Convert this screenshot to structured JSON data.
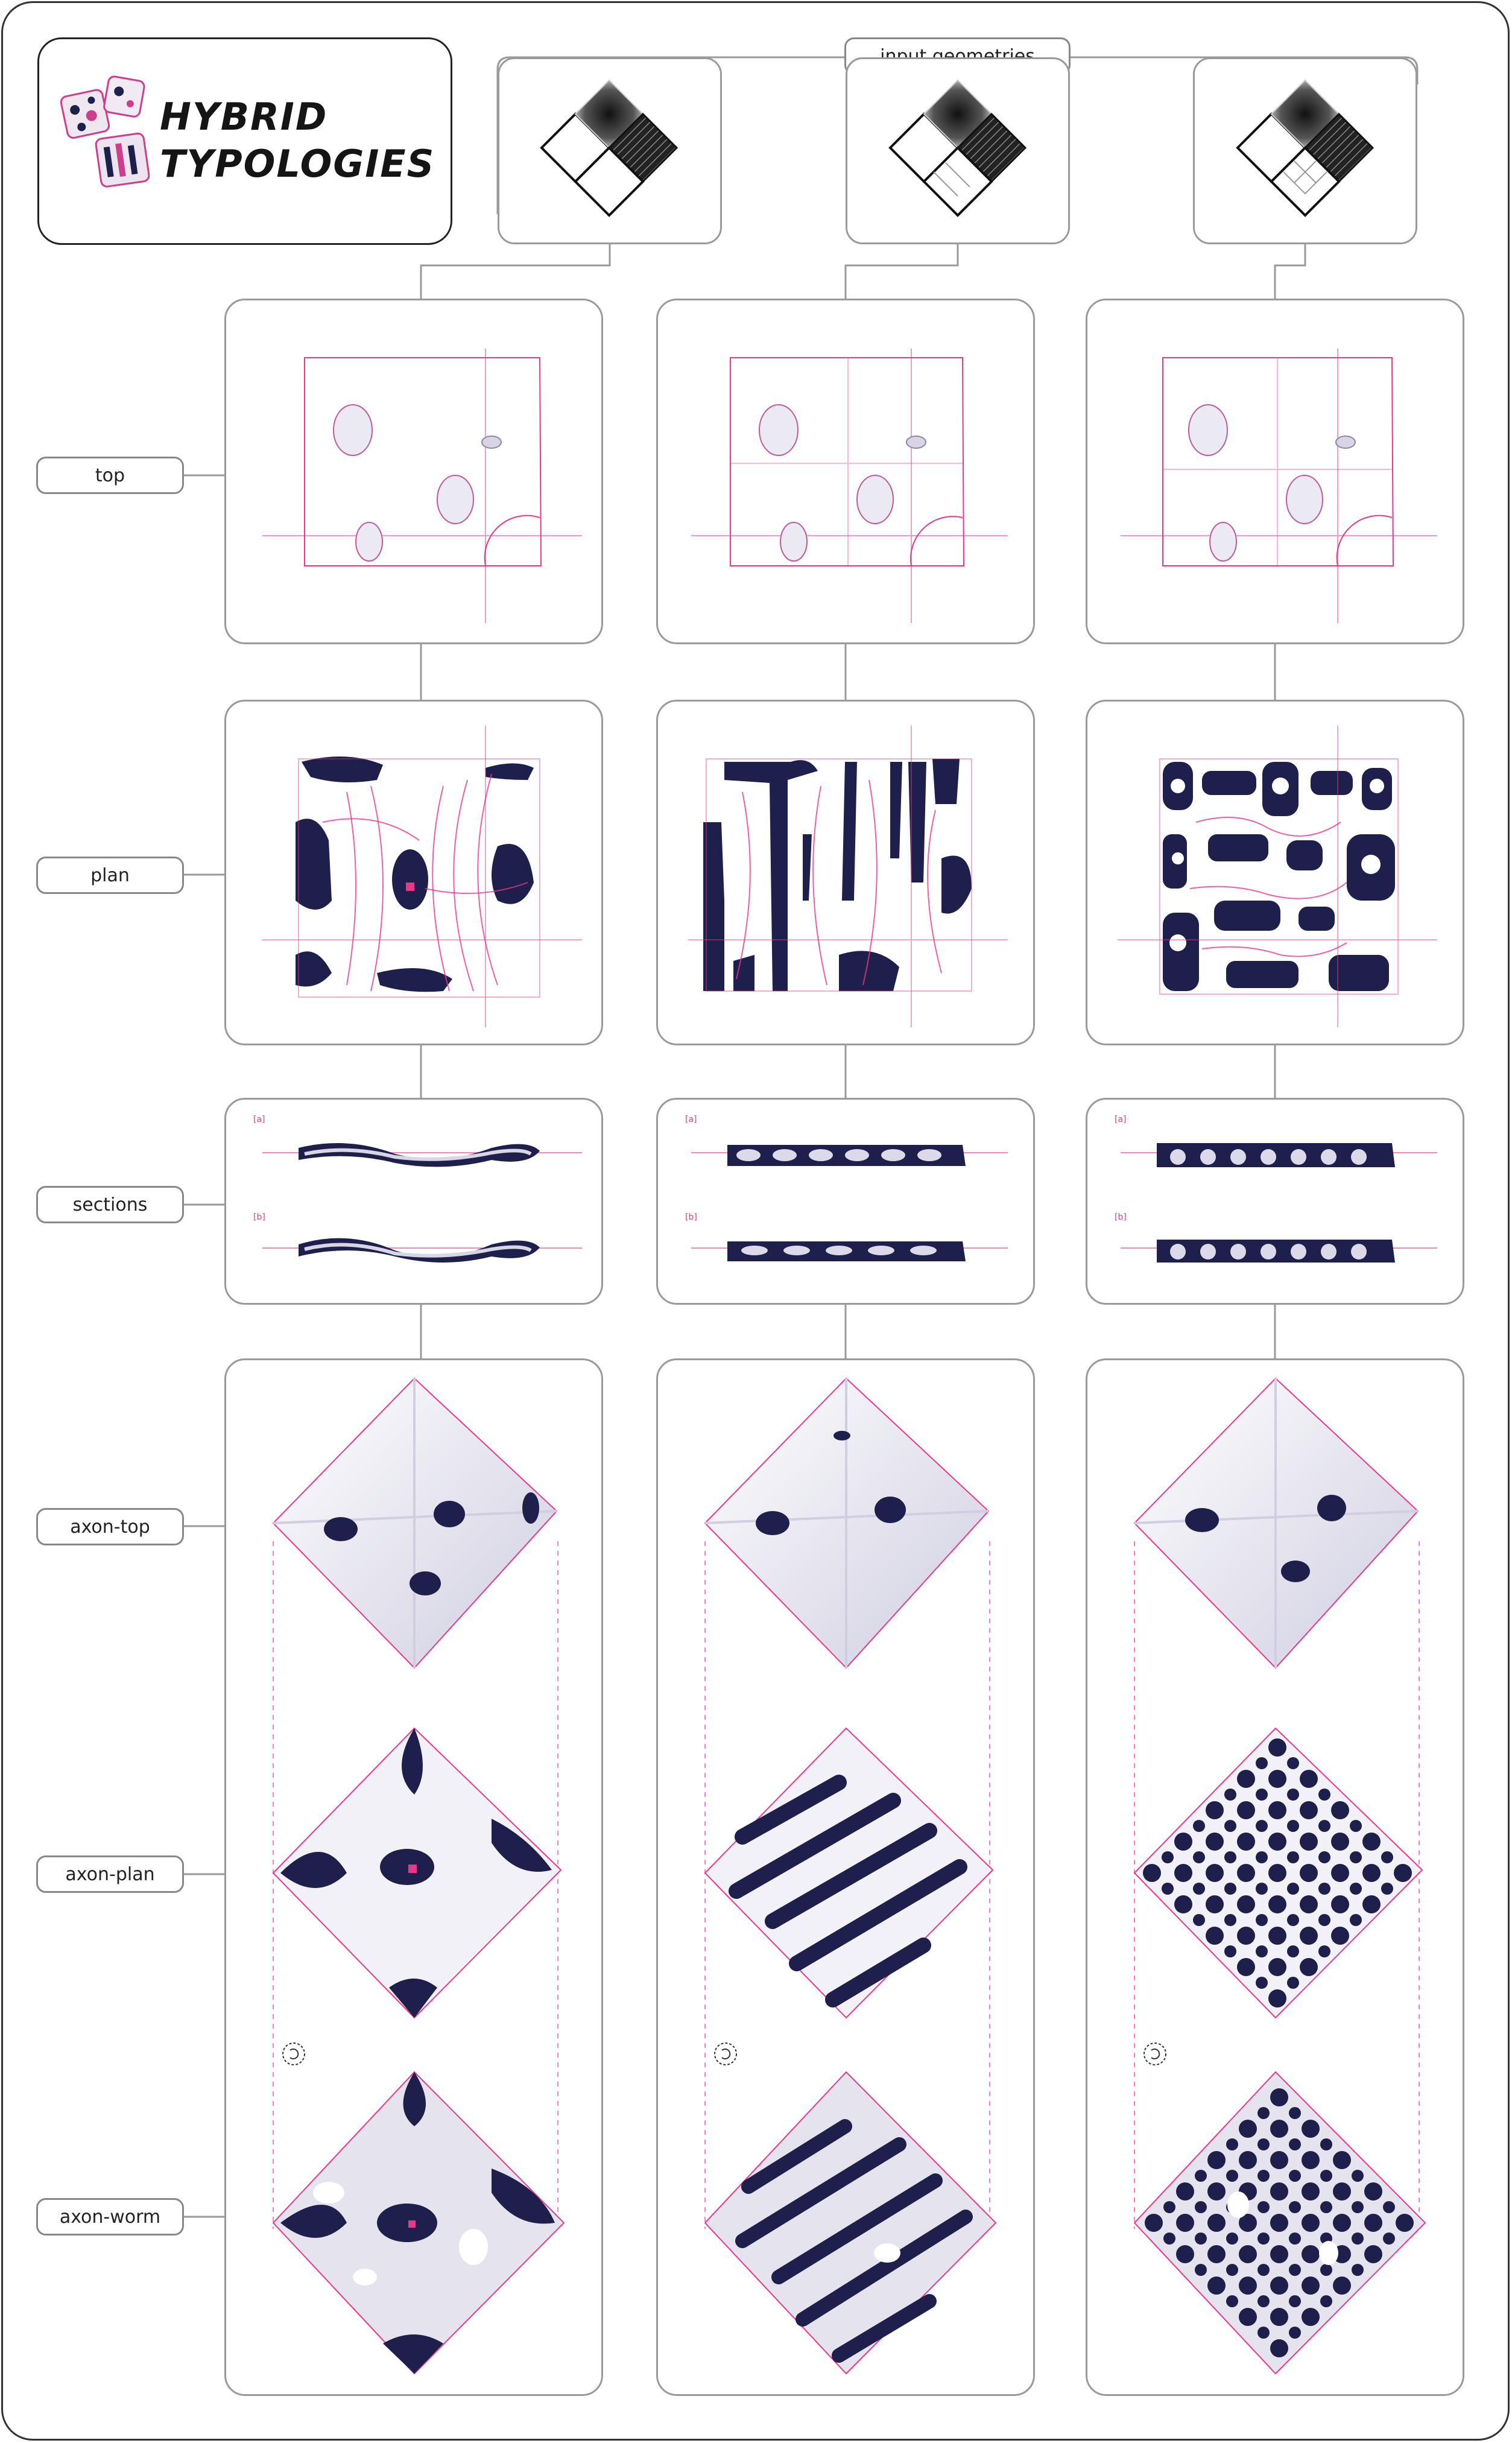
{
  "title": {
    "line1": "HYBRID",
    "line2": "TYPOLOGIES"
  },
  "input_label": "input geometries",
  "rows": {
    "top": "top",
    "plan": "plan",
    "sections": "sections",
    "axon_top": "axon-top",
    "axon_plan": "axon-plan",
    "axon_worm": "axon-worm"
  },
  "markers": {
    "a": "[a]",
    "b": "[b]"
  },
  "colors": {
    "accent": "#e8388a",
    "navy": "#1e1f4b",
    "grey": "#9a9a9a"
  },
  "icons": [
    "typology-logo-icon",
    "rotate-view-icon"
  ]
}
